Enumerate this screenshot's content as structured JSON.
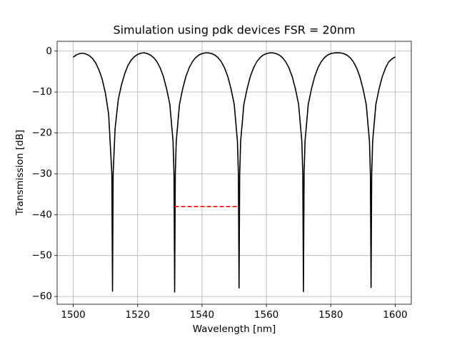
{
  "chart_data": {
    "type": "line",
    "title": "Simulation using pdk devices FSR = 20nm",
    "x_label": "Wavelength [nm]",
    "y_label": "Transmission [dB]",
    "xlim": [
      1495,
      1605
    ],
    "ylim": [
      -61.9,
      2.4
    ],
    "xticks": [
      1500,
      1520,
      1540,
      1560,
      1580,
      1600
    ],
    "yticks": [
      0,
      {
        "value": -10,
        "label": "−10"
      },
      {
        "value": -20,
        "label": "−20"
      },
      {
        "value": -30,
        "label": "−30"
      },
      {
        "value": -40,
        "label": "−40"
      },
      {
        "value": -50,
        "label": "−50"
      },
      {
        "value": -60,
        "label": "−60"
      }
    ],
    "grid": true,
    "series": [
      {
        "color": "#000000",
        "dash": "none",
        "x": [
          1500,
          1501,
          1502,
          1503,
          1504,
          1505,
          1506,
          1507,
          1508,
          1509,
          1510,
          1511,
          1512,
          1512.2,
          1512.4,
          1513,
          1514,
          1515,
          1516,
          1517,
          1518,
          1519,
          1520,
          1521,
          1522,
          1523,
          1524,
          1525,
          1526,
          1527,
          1528,
          1529,
          1530,
          1531,
          1531.3,
          1531.5,
          1531.7,
          1532,
          1533,
          1534,
          1535,
          1536,
          1537,
          1538,
          1539,
          1540,
          1541,
          1542,
          1543,
          1544,
          1545,
          1546,
          1547,
          1548,
          1549,
          1550,
          1551,
          1551.3,
          1551.5,
          1551.7,
          1552,
          1553,
          1554,
          1555,
          1556,
          1557,
          1558,
          1559,
          1560,
          1561,
          1562,
          1563,
          1564,
          1565,
          1566,
          1567,
          1568,
          1569,
          1570,
          1571,
          1571.3,
          1571.5,
          1571.7,
          1572,
          1573,
          1574,
          1575,
          1576,
          1577,
          1578,
          1579,
          1580,
          1581,
          1582,
          1583,
          1584,
          1585,
          1586,
          1587,
          1588,
          1589,
          1590,
          1591,
          1592,
          1592.3,
          1592.5,
          1592.7,
          1593,
          1594,
          1595,
          1596,
          1597,
          1598,
          1599,
          1600
        ],
        "values": [
          -1.5,
          -0.9,
          -0.6,
          -0.5,
          -0.7,
          -1.1,
          -1.8,
          -2.9,
          -4.6,
          -6.9,
          -10.3,
          -15.4,
          -30,
          -58.7,
          -30,
          -19,
          -11.8,
          -8.2,
          -5.5,
          -3.5,
          -2.2,
          -1.35,
          -0.8,
          -0.5,
          -0.4,
          -0.6,
          -0.95,
          -1.6,
          -2.6,
          -4.1,
          -6.2,
          -9.2,
          -13,
          -22,
          -30,
          -58.9,
          -30,
          -22,
          -13,
          -9.2,
          -6.2,
          -4.1,
          -2.6,
          -1.6,
          -0.95,
          -0.6,
          -0.42,
          -0.42,
          -0.6,
          -0.95,
          -1.6,
          -2.6,
          -4.1,
          -6.2,
          -9.2,
          -13,
          -22,
          -30,
          -57.9,
          -30,
          -22,
          -13,
          -9.2,
          -6.2,
          -4.1,
          -2.6,
          -1.6,
          -0.95,
          -0.6,
          -0.42,
          -0.42,
          -0.6,
          -0.95,
          -1.6,
          -2.6,
          -4.1,
          -6.2,
          -9.2,
          -13,
          -22,
          -30,
          -58.8,
          -30,
          -22,
          -13,
          -9.2,
          -6.2,
          -4.1,
          -2.6,
          -1.6,
          -0.95,
          -0.6,
          -0.45,
          -0.4,
          -0.42,
          -0.6,
          -0.95,
          -1.6,
          -2.6,
          -4.1,
          -6.2,
          -9.2,
          -13,
          -22,
          -30,
          -57.8,
          -30,
          -22,
          -13,
          -9.2,
          -6.2,
          -4.1,
          -2.6,
          -1.9,
          -1.4
        ]
      },
      {
        "color": "#ff0000",
        "dash": "6,3",
        "x": [
          1531.5,
          1551.5
        ],
        "values": [
          -38,
          -38
        ]
      }
    ]
  }
}
